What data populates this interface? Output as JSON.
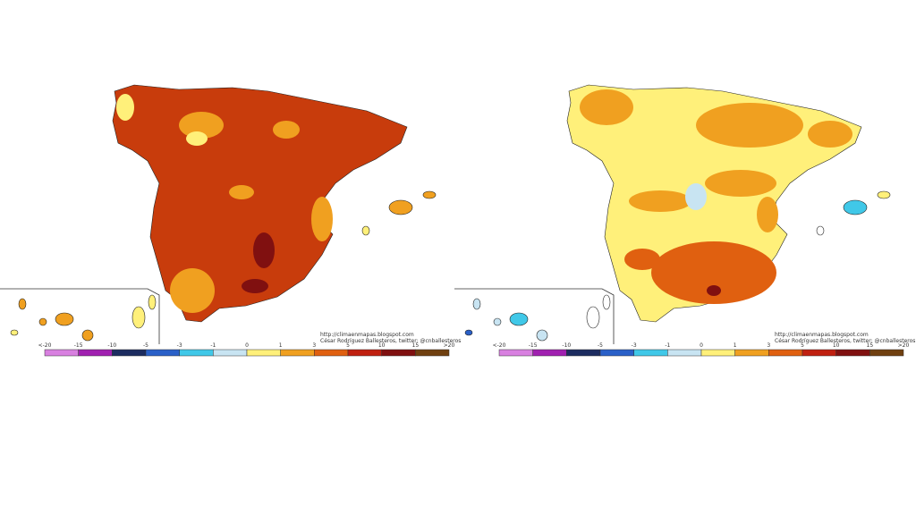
{
  "maps": [
    {
      "credit_url": "http://climaenmapas.blogspot.com",
      "credit_author": "César Rodríguez Ballesteros, twitter: @cnballesteros"
    },
    {
      "credit_url": "http://climaenmapas.blogspot.com",
      "credit_author": "César Rodríguez Ballesteros, twitter: @cnballesteros"
    }
  ],
  "legend": {
    "labels": [
      "<-20",
      "-15",
      "-10",
      "-5",
      "-3",
      "-1",
      "0",
      "1",
      "3",
      "5",
      "10",
      "15",
      ">20"
    ],
    "colors": [
      "#d880e0",
      "#a020b0",
      "#1c2c60",
      "#2a60c8",
      "#40c8e8",
      "#c8e4f2",
      "#ffffff",
      "#fff07a",
      "#f0a020",
      "#e06010",
      "#c02010",
      "#801010",
      "#704010"
    ]
  }
}
